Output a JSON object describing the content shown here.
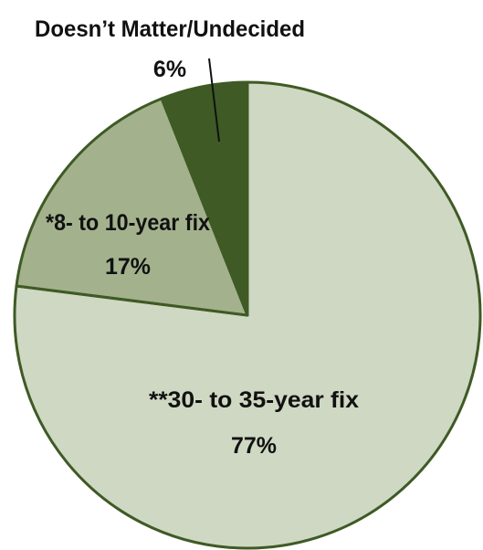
{
  "chart_data": {
    "type": "pie",
    "slices": [
      {
        "label": "**30- to 35-year fix",
        "value": 77,
        "value_label": "77%",
        "color": "#cfd8c3"
      },
      {
        "label": "*8- to 10-year fix",
        "value": 17,
        "value_label": "17%",
        "color": "#a3b28d"
      },
      {
        "label": "Doesn’t Matter/Undecided",
        "value": 6,
        "value_label": "6%",
        "color": "#3f5a25"
      }
    ]
  }
}
